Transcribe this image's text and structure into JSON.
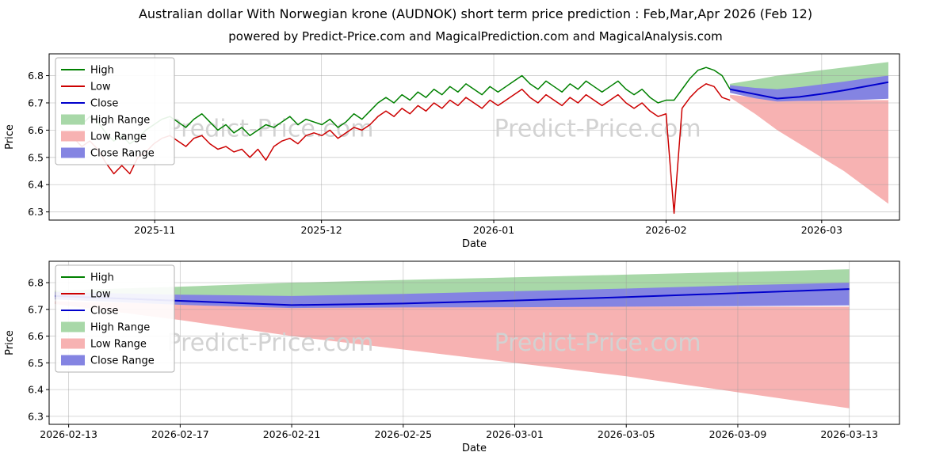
{
  "header": {
    "title": "Australian dollar With Norwegian krone (AUDNOK) short term price prediction : Feb,Mar,Apr 2026 (Feb 12)",
    "subtitle": "powered by Predict-Price.com and MagicalPrediction.com and MagicalAnalysis.com"
  },
  "watermark": "Predict-Price.com",
  "chart_data": [
    {
      "type": "line",
      "title": "",
      "xlabel": "Date",
      "ylabel": "Price",
      "x_unit": "days since 2025-10-16",
      "xlim": [
        -3,
        150
      ],
      "ylim": [
        6.27,
        6.88
      ],
      "grid": true,
      "legend_position": "upper-left",
      "xticks": [
        {
          "v": 16,
          "label": "2025-11"
        },
        {
          "v": 46,
          "label": "2025-12"
        },
        {
          "v": 77,
          "label": "2026-01"
        },
        {
          "v": 108,
          "label": "2026-02"
        },
        {
          "v": 136,
          "label": "2026-03"
        }
      ],
      "yticks": [
        {
          "v": 6.3,
          "label": "6.3"
        },
        {
          "v": 6.4,
          "label": "6.4"
        },
        {
          "v": 6.5,
          "label": "6.5"
        },
        {
          "v": 6.6,
          "label": "6.6"
        },
        {
          "v": 6.7,
          "label": "6.7"
        },
        {
          "v": 6.8,
          "label": "6.8"
        }
      ],
      "bands": [
        {
          "name": "High Range",
          "color": "#a8d8a8",
          "x": [
            119.5,
            124,
            128,
            132,
            136,
            140,
            144,
            148
          ],
          "upper": [
            6.77,
            6.785,
            6.8,
            6.81,
            6.82,
            6.83,
            6.84,
            6.85
          ],
          "lower": [
            6.755,
            6.75,
            6.745,
            6.75,
            6.76,
            6.77,
            6.78,
            6.79
          ]
        },
        {
          "name": "Low Range",
          "color": "#f7b2b2",
          "x": [
            119.5,
            124,
            128,
            132,
            136,
            140,
            144,
            148
          ],
          "upper": [
            6.73,
            6.72,
            6.715,
            6.713,
            6.712,
            6.711,
            6.71,
            6.71
          ],
          "lower": [
            6.72,
            6.66,
            6.6,
            6.55,
            6.5,
            6.45,
            6.39,
            6.33
          ]
        },
        {
          "name": "Close Range",
          "color": "#8484e2",
          "x": [
            119.5,
            124,
            128,
            132,
            136,
            140,
            144,
            148
          ],
          "upper": [
            6.765,
            6.755,
            6.75,
            6.758,
            6.768,
            6.778,
            6.79,
            6.8
          ],
          "lower": [
            6.737,
            6.717,
            6.705,
            6.707,
            6.708,
            6.71,
            6.712,
            6.715
          ]
        }
      ],
      "series": [
        {
          "name": "High",
          "color": "#008000",
          "width": 1.5,
          "x0": 0,
          "dx": 1.44,
          "values": [
            6.63,
            6.64,
            6.62,
            6.65,
            6.63,
            6.59,
            6.56,
            6.58,
            6.55,
            6.57,
            6.6,
            6.62,
            6.64,
            6.65,
            6.63,
            6.61,
            6.64,
            6.66,
            6.63,
            6.6,
            6.62,
            6.59,
            6.61,
            6.58,
            6.6,
            6.62,
            6.61,
            6.63,
            6.65,
            6.62,
            6.64,
            6.63,
            6.62,
            6.64,
            6.61,
            6.63,
            6.66,
            6.64,
            6.67,
            6.7,
            6.72,
            6.7,
            6.73,
            6.71,
            6.74,
            6.72,
            6.75,
            6.73,
            6.76,
            6.74,
            6.77,
            6.75,
            6.73,
            6.76,
            6.74,
            6.76,
            6.78,
            6.8,
            6.77,
            6.75,
            6.78,
            6.76,
            6.74,
            6.77,
            6.75,
            6.78,
            6.76,
            6.74,
            6.76,
            6.78,
            6.75,
            6.73,
            6.75,
            6.72,
            6.7,
            6.71,
            6.71,
            6.75,
            6.79,
            6.82,
            6.83,
            6.82,
            6.8,
            6.75
          ]
        },
        {
          "name": "Low",
          "color": "#cc0000",
          "width": 1.5,
          "x0": 0,
          "dx": 1.44,
          "values": [
            6.56,
            6.57,
            6.54,
            6.56,
            6.53,
            6.48,
            6.44,
            6.47,
            6.44,
            6.5,
            6.52,
            6.55,
            6.57,
            6.58,
            6.56,
            6.54,
            6.57,
            6.58,
            6.55,
            6.53,
            6.54,
            6.52,
            6.53,
            6.5,
            6.53,
            6.49,
            6.54,
            6.56,
            6.57,
            6.55,
            6.58,
            6.59,
            6.58,
            6.6,
            6.57,
            6.59,
            6.61,
            6.6,
            6.62,
            6.65,
            6.67,
            6.65,
            6.68,
            6.66,
            6.69,
            6.67,
            6.7,
            6.68,
            6.71,
            6.69,
            6.72,
            6.7,
            6.68,
            6.71,
            6.69,
            6.71,
            6.73,
            6.75,
            6.72,
            6.7,
            6.73,
            6.71,
            6.69,
            6.72,
            6.7,
            6.73,
            6.71,
            6.69,
            6.71,
            6.73,
            6.7,
            6.68,
            6.7,
            6.67,
            6.65,
            6.66,
            6.295,
            6.68,
            6.72,
            6.75,
            6.77,
            6.76,
            6.72,
            6.71
          ]
        },
        {
          "name": "Close",
          "color": "#0000cc",
          "width": 2,
          "x": [
            119.5,
            124,
            128,
            132,
            136,
            140,
            144,
            148
          ],
          "values": [
            6.75,
            6.732,
            6.716,
            6.722,
            6.733,
            6.746,
            6.761,
            6.776
          ]
        }
      ],
      "legend": [
        {
          "label": "High",
          "swatch": "line",
          "color": "#008000"
        },
        {
          "label": "Low",
          "swatch": "line",
          "color": "#cc0000"
        },
        {
          "label": "Close",
          "swatch": "line",
          "color": "#0000cc"
        },
        {
          "label": "High Range",
          "swatch": "patch",
          "color": "#a8d8a8"
        },
        {
          "label": "Low Range",
          "swatch": "patch",
          "color": "#f7b2b2"
        },
        {
          "label": "Close Range",
          "swatch": "patch",
          "color": "#8484e2"
        }
      ],
      "watermarks": [
        {
          "fx": 0.26,
          "fy": 0.45
        },
        {
          "fx": 0.645,
          "fy": 0.45
        }
      ]
    },
    {
      "type": "line",
      "title": "",
      "xlabel": "Date",
      "ylabel": "Price",
      "x_unit": "days since 2025-10-16",
      "xlim": [
        119.3,
        149.8
      ],
      "ylim": [
        6.27,
        6.88
      ],
      "grid": true,
      "legend_position": "upper-left",
      "xticks": [
        {
          "v": 120,
          "label": "2026-02-13"
        },
        {
          "v": 124,
          "label": "2026-02-17"
        },
        {
          "v": 128,
          "label": "2026-02-21"
        },
        {
          "v": 132,
          "label": "2026-02-25"
        },
        {
          "v": 136,
          "label": "2026-03-01"
        },
        {
          "v": 140,
          "label": "2026-03-05"
        },
        {
          "v": 144,
          "label": "2026-03-09"
        },
        {
          "v": 148,
          "label": "2026-03-13"
        }
      ],
      "yticks": [
        {
          "v": 6.3,
          "label": "6.3"
        },
        {
          "v": 6.4,
          "label": "6.4"
        },
        {
          "v": 6.5,
          "label": "6.5"
        },
        {
          "v": 6.6,
          "label": "6.6"
        },
        {
          "v": 6.7,
          "label": "6.7"
        },
        {
          "v": 6.8,
          "label": "6.8"
        }
      ],
      "bands": [
        {
          "name": "High Range",
          "color": "#a8d8a8",
          "x": [
            119.5,
            124,
            128,
            132,
            136,
            140,
            144,
            148
          ],
          "upper": [
            6.77,
            6.785,
            6.8,
            6.81,
            6.82,
            6.83,
            6.84,
            6.85
          ],
          "lower": [
            6.755,
            6.75,
            6.745,
            6.75,
            6.76,
            6.77,
            6.78,
            6.79
          ]
        },
        {
          "name": "Low Range",
          "color": "#f7b2b2",
          "x": [
            119.5,
            124,
            128,
            132,
            136,
            140,
            144,
            148
          ],
          "upper": [
            6.73,
            6.72,
            6.715,
            6.713,
            6.712,
            6.711,
            6.71,
            6.71
          ],
          "lower": [
            6.72,
            6.66,
            6.6,
            6.55,
            6.5,
            6.45,
            6.39,
            6.33
          ]
        },
        {
          "name": "Close Range",
          "color": "#8484e2",
          "x": [
            119.5,
            124,
            128,
            132,
            136,
            140,
            144,
            148
          ],
          "upper": [
            6.765,
            6.755,
            6.75,
            6.758,
            6.768,
            6.778,
            6.79,
            6.8
          ],
          "lower": [
            6.737,
            6.717,
            6.705,
            6.707,
            6.708,
            6.71,
            6.712,
            6.715
          ]
        }
      ],
      "series": [
        {
          "name": "Close",
          "color": "#0000cc",
          "width": 2,
          "x": [
            119.5,
            124,
            128,
            132,
            136,
            140,
            144,
            148
          ],
          "values": [
            6.75,
            6.732,
            6.716,
            6.722,
            6.733,
            6.746,
            6.761,
            6.776
          ]
        }
      ],
      "legend": [
        {
          "label": "High",
          "swatch": "line",
          "color": "#008000"
        },
        {
          "label": "Low",
          "swatch": "line",
          "color": "#cc0000"
        },
        {
          "label": "Close",
          "swatch": "line",
          "color": "#0000cc"
        },
        {
          "label": "High Range",
          "swatch": "patch",
          "color": "#a8d8a8"
        },
        {
          "label": "Low Range",
          "swatch": "patch",
          "color": "#f7b2b2"
        },
        {
          "label": "Close Range",
          "swatch": "patch",
          "color": "#8484e2"
        }
      ],
      "watermarks": [
        {
          "fx": 0.26,
          "fy": 0.5
        },
        {
          "fx": 0.645,
          "fy": 0.5
        }
      ]
    }
  ]
}
